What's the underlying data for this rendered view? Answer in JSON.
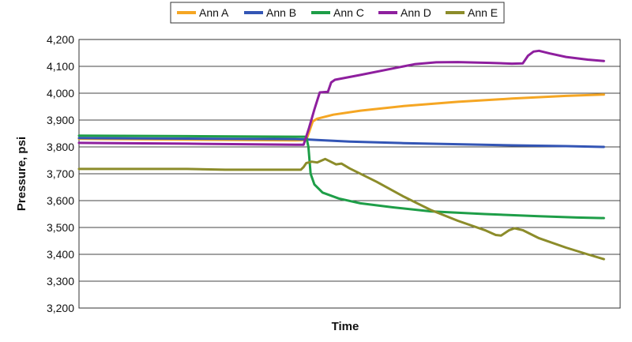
{
  "chart_data": {
    "type": "line",
    "title": "",
    "xlabel": "Time",
    "ylabel": "Pressure, psi",
    "ylim": [
      3200,
      4200
    ],
    "y_ticks": [
      "3,200",
      "3,300",
      "3,400",
      "3,500",
      "3,600",
      "3,700",
      "3,800",
      "3,900",
      "4,000",
      "4,100",
      "4,200"
    ],
    "xlim": [
      0,
      100
    ],
    "grid": true,
    "legend_position": "top",
    "series": [
      {
        "name": "Ann A",
        "color": "#F5A623",
        "points": [
          [
            0,
            3830
          ],
          [
            20,
            3827
          ],
          [
            40,
            3824
          ],
          [
            42,
            3826
          ],
          [
            42.6,
            3860
          ],
          [
            43.2,
            3895
          ],
          [
            44,
            3905
          ],
          [
            47,
            3920
          ],
          [
            52,
            3935
          ],
          [
            60,
            3952
          ],
          [
            70,
            3968
          ],
          [
            80,
            3980
          ],
          [
            90,
            3990
          ],
          [
            97,
            3995
          ]
        ]
      },
      {
        "name": "Ann B",
        "color": "#3355B5",
        "points": [
          [
            0,
            3833
          ],
          [
            20,
            3831
          ],
          [
            40,
            3829
          ],
          [
            42,
            3828
          ],
          [
            44,
            3826
          ],
          [
            50,
            3820
          ],
          [
            60,
            3814
          ],
          [
            70,
            3810
          ],
          [
            80,
            3806
          ],
          [
            90,
            3803
          ],
          [
            97,
            3800
          ]
        ]
      },
      {
        "name": "Ann C",
        "color": "#1E9E48",
        "points": [
          [
            0,
            3842
          ],
          [
            20,
            3840
          ],
          [
            40,
            3838
          ],
          [
            42,
            3838
          ],
          [
            42.4,
            3800
          ],
          [
            42.8,
            3700
          ],
          [
            43.5,
            3660
          ],
          [
            45,
            3630
          ],
          [
            48,
            3608
          ],
          [
            52,
            3590
          ],
          [
            58,
            3575
          ],
          [
            65,
            3560
          ],
          [
            75,
            3550
          ],
          [
            85,
            3542
          ],
          [
            92,
            3537
          ],
          [
            97,
            3535
          ]
        ]
      },
      {
        "name": "Ann D",
        "color": "#8E1F9E",
        "points": [
          [
            0,
            3815
          ],
          [
            20,
            3812
          ],
          [
            40,
            3808
          ],
          [
            41.5,
            3808
          ],
          [
            42.5,
            3870
          ],
          [
            43.5,
            3940
          ],
          [
            44.5,
            4003
          ],
          [
            46,
            4005
          ],
          [
            46.6,
            4040
          ],
          [
            47.3,
            4050
          ],
          [
            52,
            4068
          ],
          [
            58,
            4092
          ],
          [
            62,
            4108
          ],
          [
            66,
            4115
          ],
          [
            70,
            4116
          ],
          [
            76,
            4113
          ],
          [
            80,
            4110
          ],
          [
            82,
            4111
          ],
          [
            83,
            4140
          ],
          [
            84,
            4155
          ],
          [
            85,
            4158
          ],
          [
            87,
            4148
          ],
          [
            90,
            4135
          ],
          [
            94,
            4125
          ],
          [
            97,
            4120
          ]
        ]
      },
      {
        "name": "Ann E",
        "color": "#8C8C2A",
        "points": [
          [
            0,
            3718
          ],
          [
            20,
            3718
          ],
          [
            27,
            3715
          ],
          [
            41,
            3715
          ],
          [
            41.5,
            3725
          ],
          [
            42,
            3740
          ],
          [
            43,
            3745
          ],
          [
            44,
            3742
          ],
          [
            45.5,
            3755
          ],
          [
            46.5,
            3745
          ],
          [
            47.5,
            3735
          ],
          [
            48.5,
            3738
          ],
          [
            50,
            3720
          ],
          [
            55,
            3670
          ],
          [
            60,
            3615
          ],
          [
            65,
            3565
          ],
          [
            70,
            3525
          ],
          [
            75,
            3490
          ],
          [
            77,
            3472
          ],
          [
            78,
            3470
          ],
          [
            79.5,
            3490
          ],
          [
            80.5,
            3497
          ],
          [
            82,
            3490
          ],
          [
            85,
            3460
          ],
          [
            90,
            3425
          ],
          [
            94,
            3400
          ],
          [
            97,
            3382
          ]
        ]
      }
    ]
  }
}
